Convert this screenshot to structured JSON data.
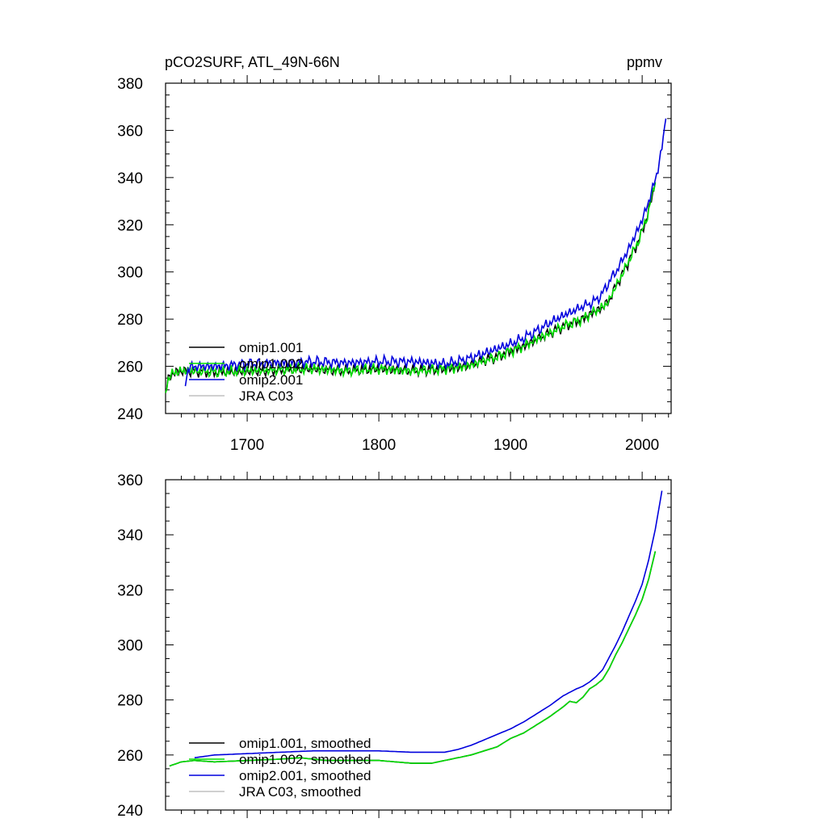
{
  "chart_data": [
    {
      "type": "line",
      "title": "pCO2SURF, ATL_49N-66N",
      "units": "ppmv",
      "xlabel": "",
      "ylabel": "",
      "xlim": [
        1638,
        2022
      ],
      "ylim": [
        240,
        380
      ],
      "xticks": [
        1700,
        1800,
        1900,
        2000
      ],
      "yticks": [
        240,
        260,
        280,
        300,
        320,
        340,
        360,
        380
      ],
      "grid": false,
      "legend_position": "bottom-left",
      "series": [
        {
          "name": "omip1.001",
          "color": "#000000",
          "x": [
            1638,
            1640,
            1645,
            1650,
            1660,
            1675,
            1700,
            1725,
            1750,
            1775,
            1800,
            1825,
            1850,
            1860,
            1870,
            1880,
            1890,
            1900,
            1910,
            1920,
            1930,
            1940,
            1950,
            1955,
            1960,
            1965,
            1970,
            1975,
            1980,
            1985,
            1990,
            1995,
            2000,
            2005,
            2010
          ],
          "y": [
            249,
            255,
            257.5,
            258,
            258,
            257.5,
            258,
            258.5,
            259,
            258,
            259,
            258,
            259,
            259.5,
            260.5,
            262.5,
            264,
            266.5,
            268.5,
            271.5,
            274,
            277,
            279,
            280,
            282,
            283.5,
            285,
            288,
            294,
            299,
            305,
            310.5,
            317,
            326,
            338
          ]
        },
        {
          "name": "omip1.002",
          "color": "#00dd00",
          "x": [
            1638,
            1640,
            1645,
            1650,
            1660,
            1675,
            1700,
            1725,
            1750,
            1775,
            1800,
            1825,
            1850,
            1860,
            1870,
            1880,
            1890,
            1900,
            1910,
            1920,
            1930,
            1940,
            1950,
            1955,
            1960,
            1965,
            1970,
            1975,
            1980,
            1985,
            1990,
            1995,
            2000,
            2005,
            2010
          ],
          "y": [
            249,
            255,
            257.5,
            258,
            258,
            257.5,
            258,
            258.5,
            259,
            258,
            259,
            258,
            259,
            259.5,
            260.5,
            262.5,
            264,
            266.5,
            268.5,
            271.5,
            274,
            277,
            279,
            280,
            282,
            283.5,
            285,
            288,
            294,
            299,
            305,
            310.5,
            317,
            326,
            338
          ]
        },
        {
          "name": "omip2.001",
          "color": "#0000dd",
          "x": [
            1653,
            1655,
            1660,
            1675,
            1700,
            1725,
            1750,
            1775,
            1800,
            1825,
            1850,
            1860,
            1870,
            1880,
            1890,
            1900,
            1910,
            1920,
            1930,
            1940,
            1950,
            1955,
            1960,
            1965,
            1970,
            1975,
            1980,
            1985,
            1990,
            1995,
            2000,
            2005,
            2010,
            2015,
            2018
          ],
          "y": [
            253,
            259,
            260,
            260,
            261,
            261.5,
            262,
            261.5,
            262,
            262,
            261,
            262,
            263.5,
            265.5,
            267.5,
            269.5,
            272,
            275,
            278.5,
            281.5,
            284,
            285.5,
            286.5,
            288,
            291,
            296,
            300,
            305,
            310,
            316,
            322,
            330,
            339,
            352,
            365
          ]
        },
        {
          "name": "JRA C03",
          "color": "#c0c0c0",
          "x": [],
          "y": []
        }
      ]
    },
    {
      "type": "line",
      "title": "",
      "xlim": [
        1638,
        2022
      ],
      "ylim": [
        240,
        360
      ],
      "xticks": [
        1700,
        1800,
        1900,
        2000
      ],
      "yticks": [
        240,
        260,
        280,
        300,
        320,
        340,
        360
      ],
      "grid": false,
      "legend_position": "bottom-left",
      "series": [
        {
          "name": "omip1.001, smoothed",
          "color": "#000000",
          "x": [
            1641,
            1650,
            1660,
            1675,
            1700,
            1725,
            1740,
            1750,
            1760,
            1775,
            1800,
            1825,
            1840,
            1850,
            1860,
            1870,
            1880,
            1890,
            1900,
            1910,
            1920,
            1930,
            1940,
            1945,
            1950,
            1955,
            1960,
            1965,
            1970,
            1975,
            1980,
            1985,
            1990,
            1995,
            2000,
            2005,
            2010
          ],
          "y": [
            256,
            257.5,
            258,
            257.5,
            258,
            258.5,
            259,
            258.5,
            258,
            258,
            258,
            257,
            257,
            258,
            259,
            260,
            261.5,
            263,
            266,
            268,
            271,
            274,
            277.5,
            279.5,
            279,
            281,
            284,
            285.5,
            287.5,
            291.5,
            296.5,
            301,
            306,
            311,
            316.5,
            324,
            334
          ]
        },
        {
          "name": "omip1.002, smoothed",
          "color": "#00dd00",
          "x": [
            1641,
            1650,
            1660,
            1675,
            1700,
            1725,
            1740,
            1750,
            1760,
            1775,
            1800,
            1825,
            1840,
            1850,
            1860,
            1870,
            1880,
            1890,
            1900,
            1910,
            1920,
            1930,
            1940,
            1945,
            1950,
            1955,
            1960,
            1965,
            1970,
            1975,
            1980,
            1985,
            1990,
            1995,
            2000,
            2005,
            2010
          ],
          "y": [
            256,
            257.5,
            258,
            257.5,
            258,
            258.5,
            259,
            258.5,
            258,
            258,
            258,
            257,
            257,
            258,
            259,
            260,
            261.5,
            263,
            266,
            268,
            271,
            274,
            277.5,
            279.5,
            279,
            281,
            284,
            285.5,
            287.5,
            291.5,
            296.5,
            301,
            306,
            311,
            316.5,
            324,
            334
          ]
        },
        {
          "name": "omip2.001, smoothed",
          "color": "#0000dd",
          "x": [
            1660,
            1675,
            1700,
            1725,
            1750,
            1775,
            1800,
            1825,
            1850,
            1860,
            1870,
            1880,
            1890,
            1900,
            1910,
            1920,
            1930,
            1940,
            1950,
            1955,
            1960,
            1965,
            1970,
            1975,
            1980,
            1985,
            1990,
            1995,
            2000,
            2005,
            2010,
            2015
          ],
          "y": [
            259,
            260,
            260.5,
            261,
            261.5,
            261.5,
            261.5,
            261,
            261,
            262,
            263.5,
            265.5,
            267.5,
            269.5,
            272,
            275,
            278,
            281.5,
            284,
            285,
            286.5,
            288.5,
            291,
            295.5,
            300,
            305,
            310.5,
            316,
            322,
            331,
            342,
            356
          ]
        },
        {
          "name": "JRA C03, smoothed",
          "color": "#c0c0c0",
          "x": [],
          "y": []
        }
      ]
    }
  ]
}
